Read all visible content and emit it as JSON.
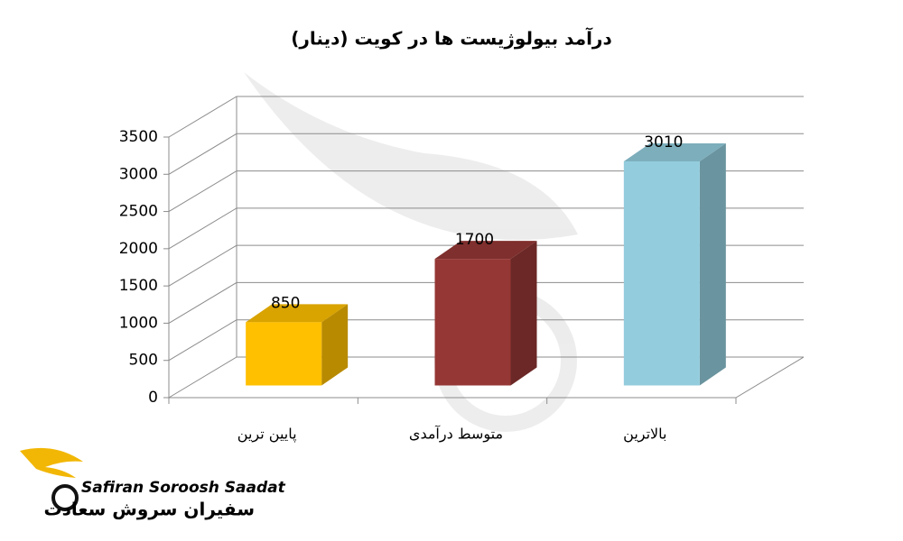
{
  "chart_data": {
    "type": "bar3d",
    "title": "درآمد بیولوژیست ها در کویت (دینار)",
    "categories": [
      "پایین ترین",
      "متوسط درآمدی",
      "بالاترین"
    ],
    "values": [
      850,
      1700,
      3010
    ],
    "colors": [
      "#ffc000",
      "#953735",
      "#93cddd"
    ],
    "ylim": [
      0,
      3500
    ],
    "yticks": [
      0,
      500,
      1000,
      1500,
      2000,
      2500,
      3000,
      3500
    ],
    "grid": true
  },
  "logo": {
    "name_en": "Safiran Soroosh Saadat",
    "name_fa": "سفیران سروش سعادت"
  }
}
